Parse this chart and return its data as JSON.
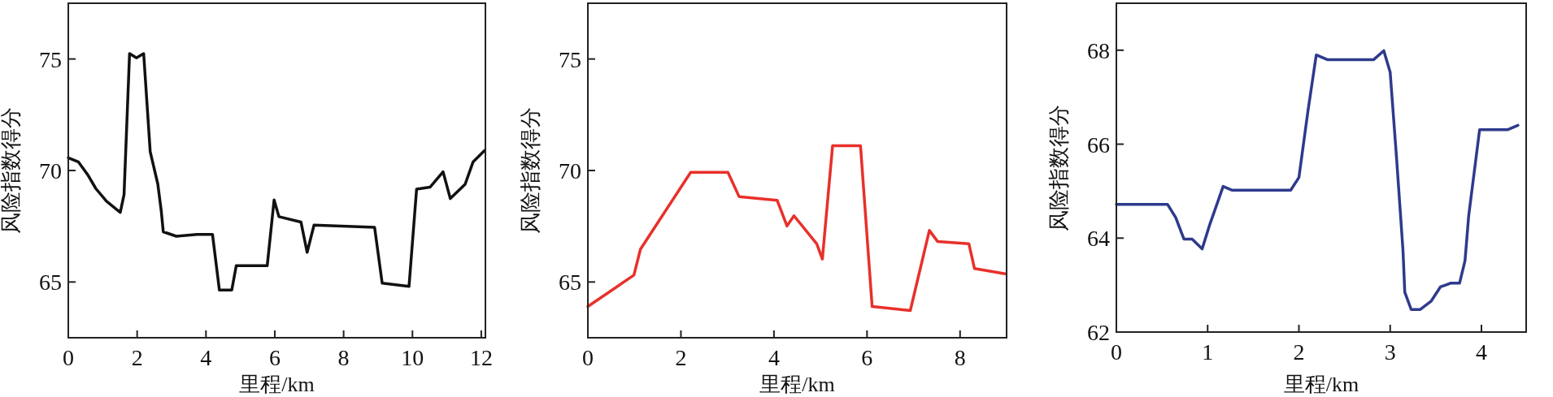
{
  "chart_data": [
    {
      "type": "line",
      "xlabel": "里程/km",
      "ylabel": "风险指数得分",
      "xlim": [
        0,
        12.12
      ],
      "ylim": [
        62.5,
        77.5
      ],
      "xticks": [
        0,
        2,
        4,
        6,
        8,
        10,
        12
      ],
      "yticks": [
        65,
        70,
        75
      ],
      "x": [
        0,
        0.29,
        0.56,
        0.8,
        1.11,
        1.51,
        1.62,
        1.78,
        1.98,
        2.19,
        2.38,
        2.6,
        2.7,
        2.76,
        3.14,
        3.74,
        4.19,
        4.39,
        4.75,
        4.88,
        5.78,
        5.98,
        6.12,
        6.76,
        6.94,
        7.14,
        8.9,
        9.12,
        9.9,
        10.12,
        10.51,
        10.89,
        11.1,
        11.53,
        11.76,
        12.1
      ],
      "series": [
        {
          "color": "#111111",
          "values": [
            70.57,
            70.39,
            69.82,
            69.19,
            68.62,
            68.12,
            68.92,
            75.24,
            75.05,
            75.24,
            70.84,
            69.4,
            68.2,
            67.25,
            67.05,
            67.13,
            67.13,
            64.64,
            64.64,
            65.73,
            65.73,
            68.68,
            67.93,
            67.69,
            66.33,
            67.55,
            67.45,
            64.95,
            64.8,
            69.16,
            69.25,
            69.94,
            68.74,
            69.38,
            70.38,
            70.9
          ]
        }
      ]
    },
    {
      "type": "line",
      "xlabel": "里程/km",
      "ylabel": "风险指数得分",
      "xlim": [
        0,
        9
      ],
      "ylim": [
        62.5,
        77.5
      ],
      "xticks": [
        0,
        2,
        4,
        6,
        8
      ],
      "yticks": [
        65,
        70,
        75
      ],
      "x": [
        0,
        0.99,
        1.13,
        2.21,
        3.01,
        3.25,
        4.07,
        4.28,
        4.43,
        4.92,
        5.04,
        5.26,
        5.86,
        6.11,
        6.93,
        7.34,
        7.52,
        8.19,
        8.31,
        8.97
      ],
      "series": [
        {
          "color": "#e8302a",
          "values": [
            63.9,
            65.31,
            66.47,
            69.92,
            69.92,
            68.83,
            68.66,
            67.51,
            67.97,
            66.71,
            66.03,
            71.11,
            71.11,
            63.9,
            63.72,
            67.31,
            66.81,
            66.71,
            65.6,
            65.37
          ]
        }
      ]
    },
    {
      "type": "line",
      "xlabel": "里程/km",
      "ylabel": "风险指数得分",
      "xlim": [
        0,
        4.49
      ],
      "ylim": [
        62,
        69
      ],
      "xticks": [
        0,
        1,
        2,
        3,
        4
      ],
      "yticks": [
        62,
        64,
        66,
        68
      ],
      "x": [
        0,
        0.56,
        0.65,
        0.74,
        0.83,
        0.94,
        1.02,
        1.17,
        1.27,
        1.91,
        2.0,
        2.1,
        2.19,
        2.31,
        2.82,
        2.93,
        3.0,
        3.07,
        3.14,
        3.16,
        3.23,
        3.33,
        3.45,
        3.55,
        3.66,
        3.76,
        3.82,
        3.86,
        3.98,
        4.29,
        4.4
      ],
      "series": [
        {
          "color": "#2e3a8c",
          "values": [
            64.72,
            64.72,
            64.44,
            63.98,
            63.98,
            63.77,
            64.27,
            65.1,
            65.02,
            65.02,
            65.29,
            66.72,
            67.9,
            67.8,
            67.8,
            67.99,
            67.53,
            65.7,
            63.75,
            62.85,
            62.48,
            62.48,
            62.66,
            62.96,
            63.04,
            63.04,
            63.52,
            64.47,
            66.31,
            66.31,
            66.4
          ]
        }
      ]
    }
  ]
}
